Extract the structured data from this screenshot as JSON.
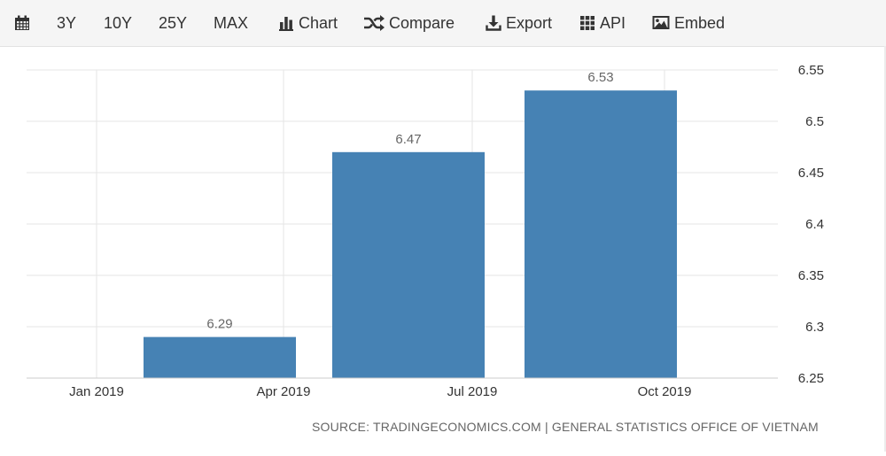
{
  "toolbar": {
    "items": [
      {
        "label": "",
        "icon": "calendar-icon"
      },
      {
        "label": "3Y"
      },
      {
        "label": "10Y"
      },
      {
        "label": "25Y"
      },
      {
        "label": "MAX"
      },
      {
        "label": "Chart",
        "icon": "bar-chart-icon"
      },
      {
        "label": "Compare",
        "icon": "shuffle-icon"
      },
      {
        "label": "Export",
        "icon": "download-icon"
      },
      {
        "label": "API",
        "icon": "grid-icon"
      },
      {
        "label": "Embed",
        "icon": "image-icon"
      }
    ]
  },
  "source_text": "SOURCE: TRADINGECONOMICS.COM | GENERAL STATISTICS OFFICE OF VIETNAM",
  "colors": {
    "bar": "#4682b4",
    "grid": "#e6e6e6",
    "axis_text": "#333333",
    "label_text": "#666666"
  },
  "chart_data": {
    "type": "bar",
    "title": "",
    "xlabel": "",
    "ylabel": "",
    "x_ticks": [
      "Jan 2019",
      "Apr 2019",
      "Jul 2019",
      "Oct 2019"
    ],
    "categories": [
      "Apr 2019",
      "Jul 2019",
      "Oct 2019"
    ],
    "values": [
      6.29,
      6.47,
      6.53
    ],
    "data_labels": [
      "6.29",
      "6.47",
      "6.53"
    ],
    "y_ticks": [
      "6.25",
      "6.3",
      "6.35",
      "6.4",
      "6.45",
      "6.5",
      "6.55"
    ],
    "ylim": [
      6.25,
      6.55
    ],
    "y_axis_side": "right",
    "grid": true,
    "legend": false
  }
}
